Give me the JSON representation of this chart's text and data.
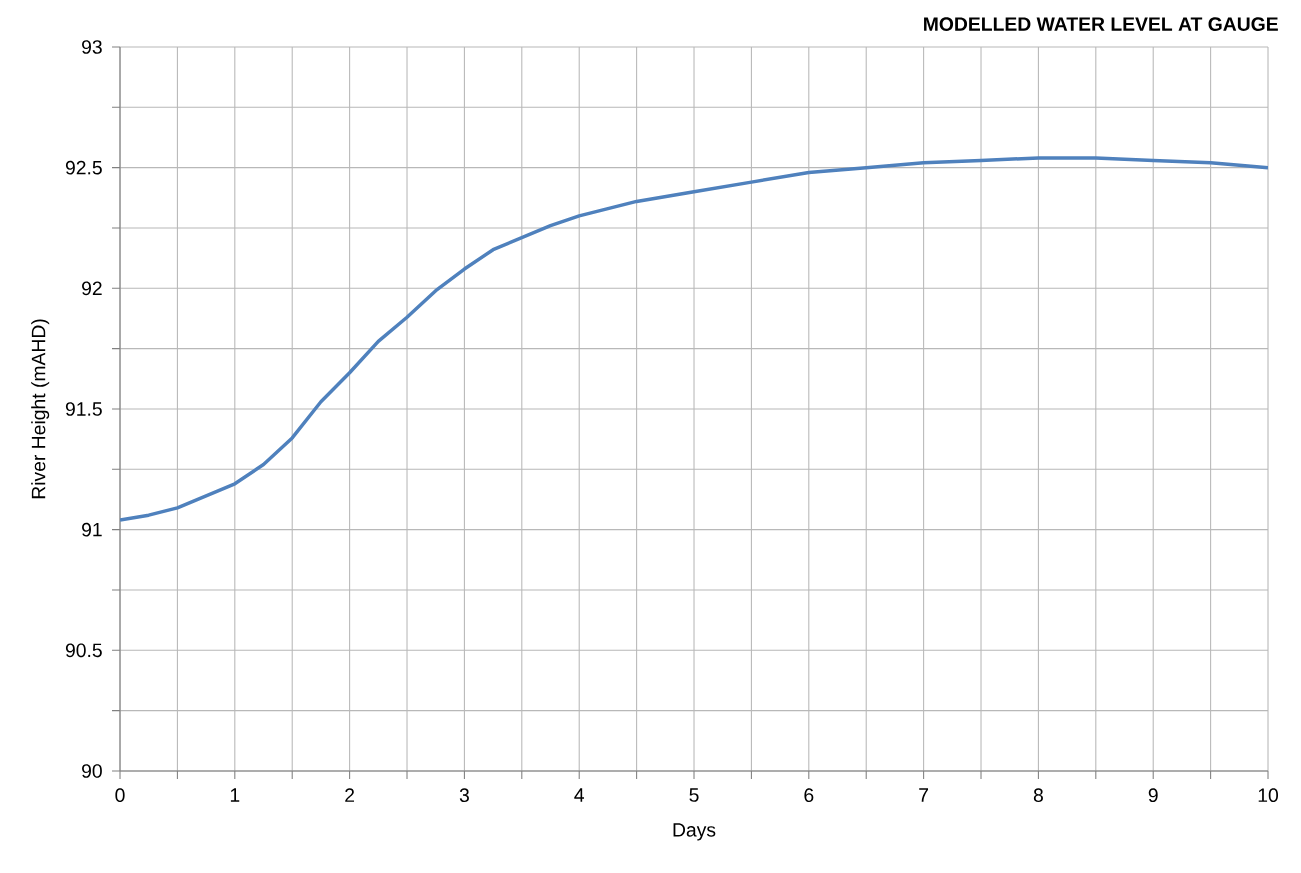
{
  "chart_data": {
    "type": "line",
    "title": "MODELLED WATER LEVEL AT GAUGE",
    "xlabel": "Days",
    "ylabel": "River Height (mAHD)",
    "x": [
      0,
      0.25,
      0.5,
      0.75,
      1,
      1.25,
      1.5,
      1.75,
      2,
      2.25,
      2.5,
      2.75,
      3,
      3.25,
      3.5,
      3.75,
      4,
      4.5,
      5,
      5.5,
      6,
      6.5,
      7,
      7.5,
      8,
      8.5,
      9,
      9.5,
      10
    ],
    "series": [
      {
        "color": "#4f81bd",
        "values": [
          91.04,
          91.06,
          91.09,
          91.14,
          91.19,
          91.27,
          91.38,
          91.53,
          91.65,
          91.78,
          91.88,
          91.99,
          92.08,
          92.16,
          92.21,
          92.26,
          92.3,
          92.36,
          92.4,
          92.44,
          92.48,
          92.5,
          92.52,
          92.53,
          92.54,
          92.54,
          92.53,
          92.52,
          92.5
        ]
      }
    ],
    "xlim": [
      0,
      10
    ],
    "ylim": [
      90,
      93
    ],
    "xticks": [
      0,
      {
        "value": 0.5,
        "label": null
      },
      1,
      {
        "value": 1.5,
        "label": null
      },
      2,
      {
        "value": 2.5,
        "label": null
      },
      3,
      {
        "value": 3.5,
        "label": null
      },
      4,
      {
        "value": 4.5,
        "label": null
      },
      5,
      {
        "value": 5.5,
        "label": null
      },
      6,
      {
        "value": 6.5,
        "label": null
      },
      7,
      {
        "value": 7.5,
        "label": null
      },
      8,
      {
        "value": 8.5,
        "label": null
      },
      9,
      {
        "value": 9.5,
        "label": null
      },
      10
    ],
    "yticks": [
      90,
      {
        "value": 90.25,
        "label": null
      },
      90.5,
      {
        "value": 90.75,
        "label": null
      },
      91,
      {
        "value": 91.25,
        "label": null
      },
      91.5,
      {
        "value": 91.75,
        "label": null
      },
      92,
      {
        "value": 92.25,
        "label": null
      },
      92.5,
      {
        "value": 92.75,
        "label": null
      },
      93
    ],
    "grid": true
  }
}
